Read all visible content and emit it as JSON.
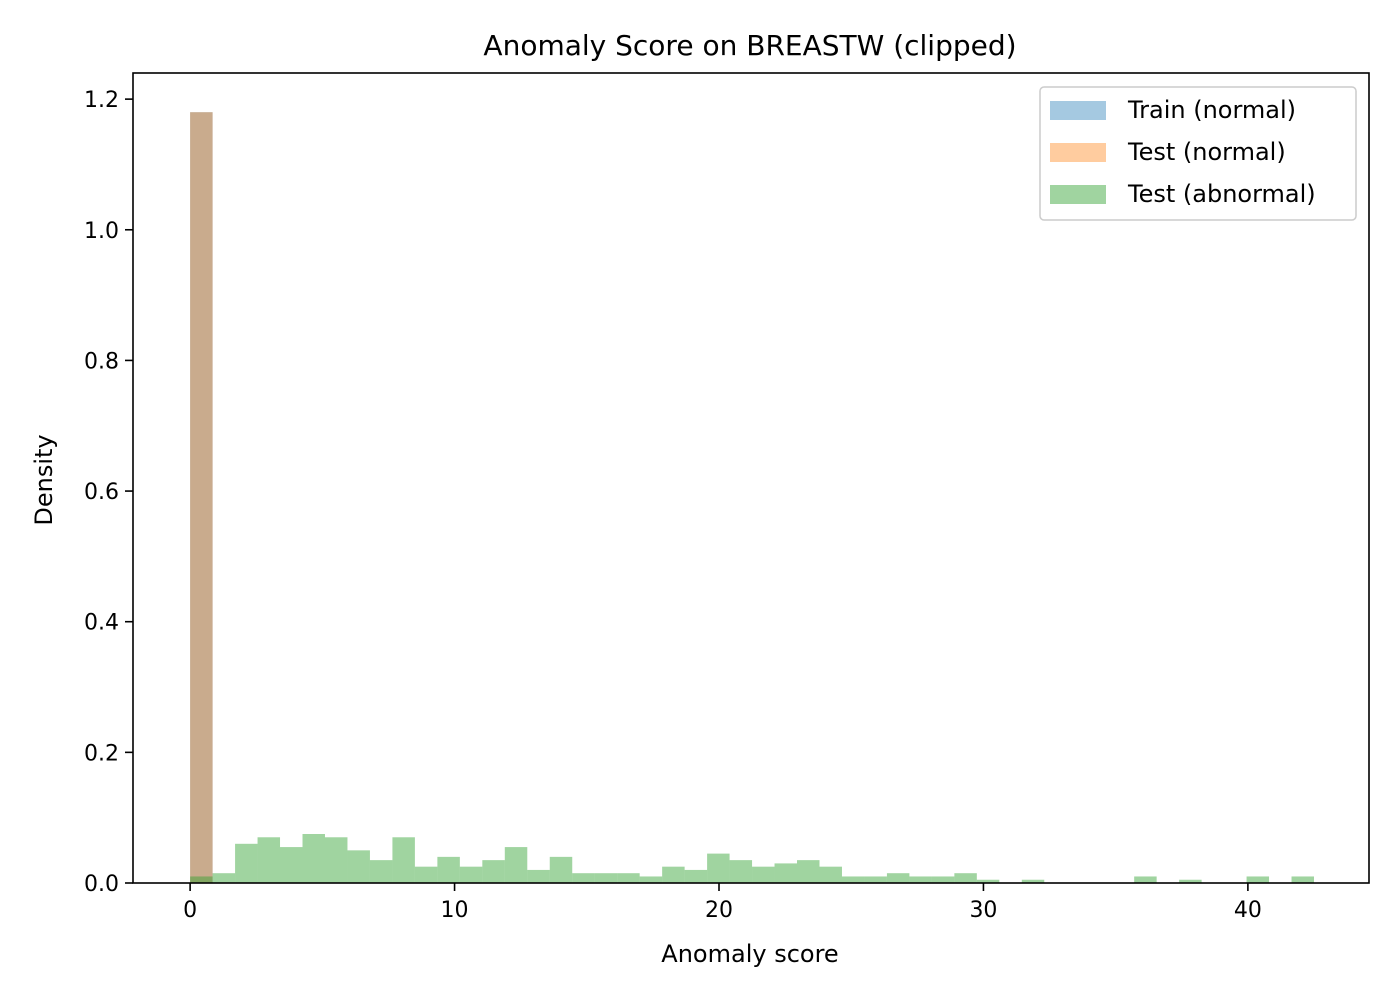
{
  "chart_data": {
    "type": "bar",
    "title": "Anomaly Score on BREASTW (clipped)",
    "xlabel": "Anomaly score",
    "ylabel": "Density",
    "xlim": [
      -2.16,
      44.58
    ],
    "ylim": [
      0,
      1.24
    ],
    "xticks": [
      0,
      10,
      20,
      30,
      40
    ],
    "yticks": [
      0.0,
      0.2,
      0.4,
      0.6,
      0.8,
      1.0,
      1.2
    ],
    "xtick_labels": [
      "0",
      "10",
      "20",
      "30",
      "40"
    ],
    "ytick_labels": [
      "0.0",
      "0.2",
      "0.4",
      "0.6",
      "0.8",
      "1.0",
      "1.2"
    ],
    "grid": false,
    "legend_position": "top-right",
    "series": [
      {
        "name": "Train (normal)",
        "color": "#1f77b4",
        "opacity": 0.4,
        "bins": [
          {
            "x0": 0.0,
            "x1": 0.85,
            "density": 1.18
          }
        ]
      },
      {
        "name": "Test (normal)",
        "color": "#ff7f0e",
        "opacity": 0.4,
        "bins": [
          {
            "x0": 0.0,
            "x1": 0.85,
            "density": 1.18
          }
        ]
      },
      {
        "name": "Test (abnormal)",
        "color": "#2ca02c",
        "opacity": 0.45,
        "bin_start": 0.0,
        "bin_width": 0.85,
        "values": [
          0.01,
          0.015,
          0.06,
          0.07,
          0.055,
          0.075,
          0.07,
          0.05,
          0.035,
          0.07,
          0.025,
          0.04,
          0.025,
          0.035,
          0.055,
          0.02,
          0.04,
          0.015,
          0.015,
          0.015,
          0.01,
          0.025,
          0.02,
          0.045,
          0.035,
          0.025,
          0.03,
          0.035,
          0.025,
          0.01,
          0.01,
          0.015,
          0.01,
          0.01,
          0.015,
          0.005,
          0.0,
          0.005,
          0.0,
          0.0,
          0.0,
          0.0,
          0.01,
          0.0,
          0.005,
          0.0,
          0.0,
          0.01,
          0.0,
          0.01
        ]
      }
    ]
  }
}
